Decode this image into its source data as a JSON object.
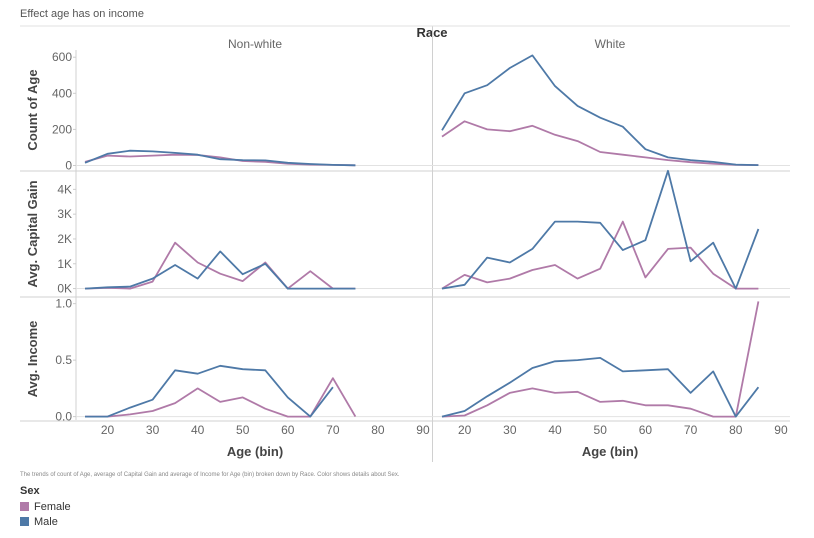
{
  "title": "Effect age has on income",
  "caption": "The trends of count of Age, average of Capital Gain and average of Income for Age (bin) broken down by Race.  Color shows details about Sex.",
  "chart_data": {
    "type": "line",
    "column_header": "Race",
    "columns": [
      "Non-white",
      "White"
    ],
    "xlabel": "Age (bin)",
    "x_ticks": [
      20,
      30,
      40,
      50,
      60,
      70,
      80,
      90
    ],
    "x_range": [
      13,
      92
    ],
    "legend": {
      "title": "Sex",
      "position": "bottom-left"
    },
    "series_colors": {
      "Female": "#b07aa8",
      "Male": "#4e79a7"
    },
    "rows": [
      {
        "ylabel": "Count of Age",
        "ylim": [
          -25,
          640
        ],
        "y_ticks": [
          0,
          200,
          400,
          600
        ],
        "y_tick_labels": [
          "0",
          "200",
          "400",
          "600"
        ],
        "panels": {
          "Non-white": {
            "Female": {
              "x": [
                15,
                20,
                25,
                30,
                35,
                40,
                45,
                50,
                55,
                60,
                65,
                70,
                75
              ],
              "y": [
                20,
                55,
                50,
                55,
                60,
                58,
                45,
                25,
                20,
                10,
                5,
                3,
                1
              ]
            },
            "Male": {
              "x": [
                15,
                20,
                25,
                30,
                35,
                40,
                45,
                50,
                55,
                60,
                65,
                70,
                75
              ],
              "y": [
                15,
                65,
                82,
                78,
                70,
                60,
                35,
                30,
                28,
                15,
                8,
                3,
                1
              ]
            }
          },
          "White": {
            "Female": {
              "x": [
                15,
                20,
                25,
                30,
                35,
                40,
                45,
                50,
                55,
                60,
                65,
                70,
                75,
                80,
                85
              ],
              "y": [
                160,
                245,
                200,
                190,
                220,
                170,
                135,
                75,
                60,
                45,
                30,
                18,
                10,
                4,
                2
              ]
            },
            "Male": {
              "x": [
                15,
                20,
                25,
                30,
                35,
                40,
                45,
                50,
                55,
                60,
                65,
                70,
                75,
                80,
                85
              ],
              "y": [
                195,
                400,
                445,
                540,
                610,
                440,
                330,
                265,
                215,
                90,
                45,
                30,
                20,
                5,
                2
              ]
            }
          }
        }
      },
      {
        "ylabel": "Avg. Capital Gain",
        "ylim": [
          -300,
          4700
        ],
        "y_ticks": [
          0,
          1000,
          2000,
          3000,
          4000
        ],
        "y_tick_labels": [
          "0K",
          "1K",
          "2K",
          "3K",
          "4K"
        ],
        "panels": {
          "Non-white": {
            "Female": {
              "x": [
                15,
                20,
                25,
                30,
                35,
                40,
                45,
                50,
                55,
                60,
                65,
                70,
                75
              ],
              "y": [
                0,
                30,
                0,
                280,
                1850,
                1050,
                600,
                300,
                1050,
                0,
                700,
                0,
                0
              ]
            },
            "Male": {
              "x": [
                15,
                20,
                25,
                30,
                35,
                40,
                45,
                50,
                55,
                60,
                65,
                70,
                75
              ],
              "y": [
                0,
                50,
                80,
                400,
                950,
                400,
                1500,
                580,
                1000,
                0,
                0,
                0,
                0
              ]
            }
          },
          "White": {
            "Female": {
              "x": [
                15,
                20,
                25,
                30,
                35,
                40,
                45,
                50,
                55,
                60,
                65,
                70,
                75,
                80,
                85
              ],
              "y": [
                0,
                550,
                250,
                400,
                750,
                950,
                400,
                800,
                2700,
                450,
                1600,
                1650,
                600,
                0,
                0
              ]
            },
            "Male": {
              "x": [
                15,
                20,
                25,
                30,
                35,
                40,
                45,
                50,
                55,
                60,
                65,
                70,
                75,
                80,
                85
              ],
              "y": [
                0,
                150,
                1250,
                1050,
                1600,
                2700,
                2700,
                2650,
                1550,
                1950,
                4750,
                1100,
                1850,
                0,
                2400
              ]
            }
          }
        }
      },
      {
        "ylabel": "Avg. Income",
        "ylim": [
          -0.03,
          1.05
        ],
        "y_ticks": [
          0,
          0.5,
          1
        ],
        "y_tick_labels": [
          "0.0",
          "0.5",
          "1.0"
        ],
        "panels": {
          "Non-white": {
            "Female": {
              "x": [
                15,
                20,
                25,
                30,
                35,
                40,
                45,
                50,
                55,
                60,
                65,
                70,
                75
              ],
              "y": [
                0,
                0,
                0.02,
                0.05,
                0.12,
                0.25,
                0.13,
                0.17,
                0.07,
                0,
                0,
                0.34,
                0
              ]
            },
            "Male": {
              "x": [
                15,
                20,
                25,
                30,
                35,
                40,
                45,
                50,
                55,
                60,
                65,
                70
              ],
              "y": [
                0,
                0,
                0.08,
                0.15,
                0.41,
                0.38,
                0.45,
                0.42,
                0.41,
                0.17,
                0,
                0.26
              ]
            }
          },
          "White": {
            "Female": {
              "x": [
                15,
                20,
                25,
                30,
                35,
                40,
                45,
                50,
                55,
                60,
                65,
                70,
                75,
                80,
                85
              ],
              "y": [
                0,
                0.01,
                0.1,
                0.21,
                0.25,
                0.21,
                0.22,
                0.13,
                0.14,
                0.1,
                0.1,
                0.07,
                0,
                0,
                1.02
              ]
            },
            "Male": {
              "x": [
                15,
                20,
                25,
                30,
                35,
                40,
                45,
                50,
                55,
                60,
                65,
                70,
                75,
                80,
                85
              ],
              "y": [
                0,
                0.05,
                0.18,
                0.3,
                0.43,
                0.49,
                0.5,
                0.52,
                0.4,
                0.41,
                0.42,
                0.21,
                0.4,
                0,
                0.26
              ]
            }
          }
        }
      }
    ]
  }
}
